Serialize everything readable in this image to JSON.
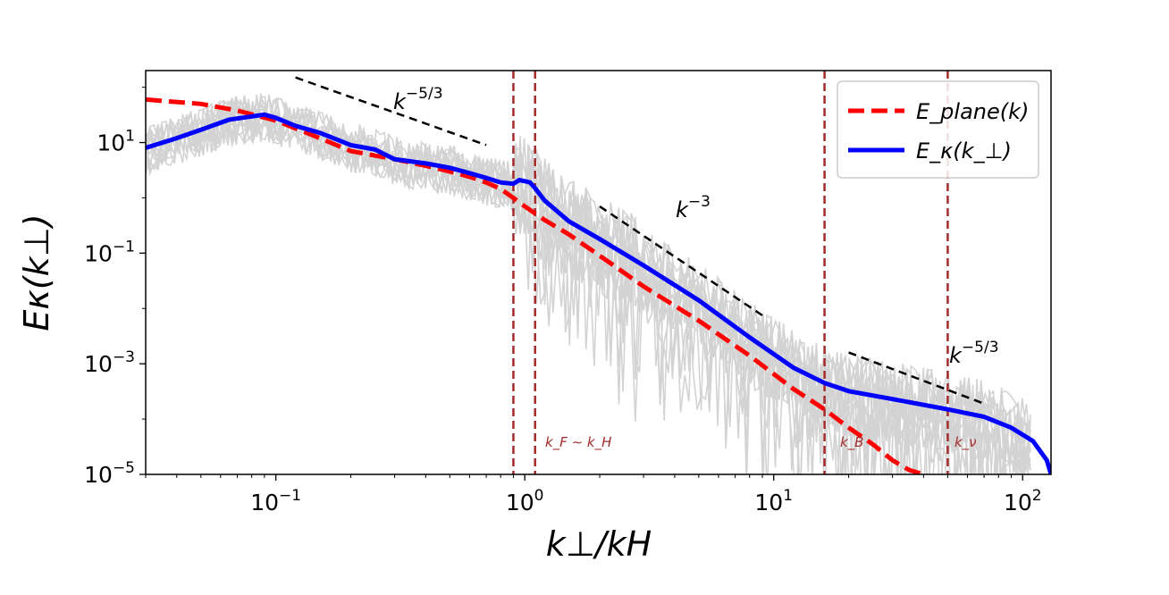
{
  "chart_data": {
    "type": "line",
    "title": "",
    "xlabel": "k⊥/kH",
    "ylabel": "Eκ(k⊥)",
    "xscale": "log",
    "yscale": "log",
    "xlim": [
      0.03,
      130
    ],
    "ylim": [
      1e-05,
      200
    ],
    "x_ticks": [
      {
        "value": 0.1,
        "base": "10",
        "exp": "−1"
      },
      {
        "value": 1,
        "base": "10",
        "exp": "0"
      },
      {
        "value": 10,
        "base": "10",
        "exp": "1"
      },
      {
        "value": 100,
        "base": "10",
        "exp": "2"
      }
    ],
    "y_ticks": [
      {
        "value": 10,
        "base": "10",
        "exp": "1"
      },
      {
        "value": 0.1,
        "base": "10",
        "exp": "−1"
      },
      {
        "value": 0.001,
        "base": "10",
        "exp": "−3"
      },
      {
        "value": 1e-05,
        "base": "10",
        "exp": "−5"
      }
    ],
    "legend": {
      "location": "top-right",
      "entries": [
        {
          "label": "E_plane(k)",
          "color": "#ff0000",
          "style": "dashed"
        },
        {
          "label": "E_κ(k_⊥)",
          "color": "#0000ff",
          "style": "solid"
        }
      ]
    },
    "series": [
      {
        "name": "E_plane(k)",
        "color": "#ff0000",
        "style": "dashed",
        "x": [
          0.03,
          0.05,
          0.07,
          0.1,
          0.15,
          0.2,
          0.3,
          0.4,
          0.5,
          0.6,
          0.7,
          0.8,
          0.9,
          1.0,
          1.2,
          1.5,
          2,
          3,
          5,
          8,
          12,
          16,
          20,
          25,
          30,
          35,
          40
        ],
        "y": [
          60,
          50,
          38,
          25,
          12,
          7,
          5,
          3.8,
          3.0,
          2.4,
          1.9,
          1.45,
          1.0,
          0.7,
          0.4,
          0.22,
          0.09,
          0.025,
          0.006,
          0.0014,
          0.00035,
          0.00015,
          7e-05,
          3.5e-05,
          1.8e-05,
          1.2e-05,
          1e-05
        ]
      },
      {
        "name": "E_κ(k_⊥)",
        "color": "#0000ff",
        "style": "solid",
        "x": [
          0.03,
          0.04,
          0.05,
          0.065,
          0.09,
          0.1,
          0.12,
          0.15,
          0.2,
          0.25,
          0.3,
          0.4,
          0.5,
          0.6,
          0.7,
          0.8,
          0.9,
          0.95,
          1.0,
          1.05,
          1.1,
          1.2,
          1.5,
          2,
          3,
          5,
          8,
          12,
          16,
          20,
          30,
          50,
          70,
          90,
          110,
          125,
          130
        ],
        "y": [
          8,
          12,
          17,
          26,
          32,
          28,
          20,
          15,
          9,
          7.5,
          5,
          4.2,
          3.5,
          2.8,
          2.3,
          1.9,
          1.8,
          2.1,
          2.0,
          1.9,
          1.5,
          0.9,
          0.38,
          0.18,
          0.06,
          0.014,
          0.003,
          0.00085,
          0.00045,
          0.00032,
          0.00023,
          0.00015,
          0.00011,
          7e-05,
          4e-05,
          1.8e-05,
          1e-05
        ]
      }
    ],
    "reference_lines": [
      {
        "label_base": "k",
        "label_exp": "−5/3",
        "x": [
          0.12,
          0.7
        ],
        "y": [
          150,
          9
        ]
      },
      {
        "label_base": "k",
        "label_exp": "−3",
        "x": [
          2,
          9
        ],
        "y": [
          0.7,
          0.0075
        ]
      },
      {
        "label_base": "k",
        "label_exp": "−5/3",
        "x": [
          20,
          70
        ],
        "y": [
          0.0016,
          0.00019
        ]
      }
    ],
    "vertical_lines": [
      {
        "x": 0.9,
        "label": ""
      },
      {
        "x": 1.1,
        "label": "k_F ∼ k_H"
      },
      {
        "x": 16,
        "label": "k_B"
      },
      {
        "x": 50,
        "label": "k_ν"
      }
    ]
  }
}
